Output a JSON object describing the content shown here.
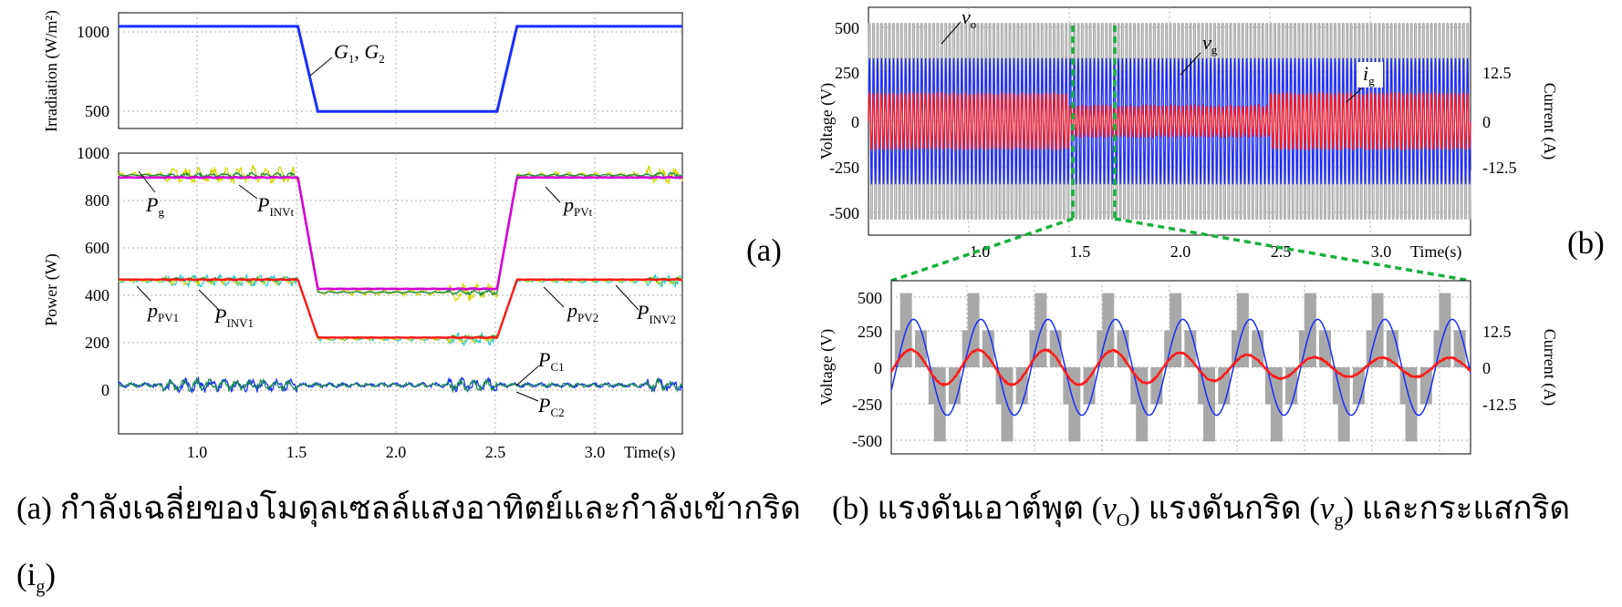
{
  "panel_labels": {
    "a": "(a)",
    "b": "(b)"
  },
  "captions": {
    "a_text": "(a) กำลังเฉลี่ยของโมดุลเซลล์แสงอาทิตย์และกำลังเข้ากริด",
    "a_cont": "(i",
    "a_cont_sub": "g",
    "a_cont_end": ")",
    "b_text1": "(b) แรงดันเอาต์พุต (",
    "b_v": "v",
    "b_sub1": "O",
    "b_text2": ") แรงดันกริด (",
    "b_v2": "v",
    "b_sub2": "g",
    "b_text3": ") และกระแสกริด"
  },
  "colors": {
    "blue": "#1a2cff",
    "red": "#ff1a1a",
    "magenta": "#d400d4",
    "green": "#1a8a4a",
    "cyan": "#20c8d8",
    "yellow": "#d6d600",
    "gray": "#a8a8a8",
    "dashed_green": "#18b040"
  },
  "chart_data": [
    {
      "type": "line",
      "ylabel": "Irradiation (W/m²)",
      "ylim": [
        400,
        1080
      ],
      "xlim": [
        0.6,
        3.43
      ],
      "yticks": [
        "1000",
        "500"
      ],
      "ytick_values": [
        1000,
        500
      ],
      "grid": true,
      "series": [
        {
          "name": "G1, G2",
          "x": [
            0.6,
            1.5,
            1.6,
            2.5,
            2.6,
            3.43
          ],
          "y": [
            1000,
            1000,
            500,
            500,
            1000,
            1000
          ]
        }
      ],
      "annotations": [
        {
          "label": "G",
          "sub": "1",
          "sep": ", ",
          "label2": "G",
          "sub2": "2"
        }
      ]
    },
    {
      "type": "line",
      "ylabel": "Power (W)",
      "xlabel": "Time(s)",
      "ylim": [
        -210,
        1000
      ],
      "xlim": [
        0.6,
        3.43
      ],
      "yticks": [
        "1000",
        "800",
        "600",
        "400",
        "200",
        "0"
      ],
      "ytick_values": [
        1000,
        800,
        600,
        400,
        200,
        0
      ],
      "xticks": [
        "1.0",
        "1.5",
        "2.0",
        "2.5",
        "3.0"
      ],
      "xtick_values": [
        1.0,
        1.5,
        2.0,
        2.5,
        3.0
      ],
      "grid": true,
      "series": [
        {
          "name": "Pg",
          "x": [
            0.6,
            1.5,
            1.6,
            2.5,
            2.6,
            3.43
          ],
          "y": [
            895,
            895,
            415,
            415,
            895,
            895
          ]
        },
        {
          "name": "PINVt",
          "x": [
            0.6,
            1.5,
            1.6,
            2.5,
            2.6,
            3.43
          ],
          "y": [
            905,
            905,
            400,
            400,
            905,
            905
          ]
        },
        {
          "name": "PPVt",
          "x": [
            0.6,
            1.5,
            1.6,
            2.5,
            2.6,
            3.43
          ],
          "y": [
            905,
            905,
            400,
            400,
            905,
            905
          ]
        },
        {
          "name": "PPV1",
          "x": [
            0.6,
            1.5,
            1.6,
            2.5,
            2.6,
            3.43
          ],
          "y": [
            455,
            455,
            205,
            205,
            455,
            455
          ]
        },
        {
          "name": "PINV1",
          "x": [
            0.6,
            1.5,
            1.6,
            2.5,
            2.6,
            3.43
          ],
          "y": [
            450,
            450,
            200,
            200,
            450,
            450
          ]
        },
        {
          "name": "PPV2",
          "x": [
            0.6,
            1.5,
            1.6,
            2.5,
            2.6,
            3.43
          ],
          "y": [
            455,
            455,
            205,
            205,
            455,
            455
          ]
        },
        {
          "name": "PINV2",
          "x": [
            0.6,
            1.5,
            1.6,
            2.5,
            2.6,
            3.43
          ],
          "y": [
            450,
            450,
            200,
            200,
            450,
            450
          ]
        },
        {
          "name": "PC1",
          "x": [
            0.6,
            3.43
          ],
          "y": [
            0,
            0
          ]
        },
        {
          "name": "PC2",
          "x": [
            0.6,
            3.43
          ],
          "y": [
            0,
            0
          ]
        }
      ],
      "annotations": [
        {
          "label": "P",
          "sub": "g"
        },
        {
          "label": "P",
          "sub": "INVt"
        },
        {
          "label": "p",
          "sub": "PVt"
        },
        {
          "label": "p",
          "sub": "PV1"
        },
        {
          "label": "P",
          "sub": "INV1"
        },
        {
          "label": "p",
          "sub": "PV2"
        },
        {
          "label": "P",
          "sub": "INV2"
        },
        {
          "label": "P",
          "sub": "C1"
        },
        {
          "label": "P",
          "sub": "C2"
        }
      ]
    },
    {
      "type": "line",
      "ylabel": "Voltage (V)",
      "y2label": "Current (A)",
      "xlabel": "Time(s)",
      "ylim": [
        -560,
        560
      ],
      "xlim": [
        0.5,
        3.5
      ],
      "yticks": [
        "500",
        "250",
        "0",
        "-250",
        "-500"
      ],
      "ytick_values": [
        500,
        250,
        0,
        -250,
        -500
      ],
      "y2ticks": [
        "12.5",
        "0",
        "-12.5"
      ],
      "y2tick_values": [
        12.5,
        0,
        -12.5
      ],
      "xticks": [
        "1.0",
        "1.5",
        "2.0",
        "2.5",
        "3.0"
      ],
      "xtick_values": [
        1.0,
        1.5,
        2.0,
        2.5,
        3.0
      ],
      "grid": true,
      "series": [
        {
          "name": "vo",
          "amplitude": 480
        },
        {
          "name": "vg",
          "amplitude": 310
        },
        {
          "name": "ig",
          "amplitude": 5.5
        }
      ],
      "annotations": [
        {
          "label": "v",
          "sub": "o"
        },
        {
          "label": "v",
          "sub": "g"
        },
        {
          "label": "i",
          "sub": "g"
        }
      ]
    },
    {
      "type": "line",
      "ylabel": "Voltage (V)",
      "y2label": "Current (A)",
      "ylim": [
        -560,
        560
      ],
      "xlim": [
        1.5,
        1.68
      ],
      "yticks": [
        "500",
        "250",
        "0",
        "-250",
        "-500"
      ],
      "ytick_values": [
        500,
        250,
        0,
        -250,
        -500
      ],
      "y2ticks": [
        "12.5",
        "0",
        "-12.5"
      ],
      "y2tick_values": [
        12.5,
        0,
        -12.5
      ],
      "grid": true,
      "series": [
        {
          "name": "vo",
          "amplitude": 480,
          "levels": [
            480,
            240,
            0,
            -240,
            -480
          ]
        },
        {
          "name": "vg",
          "amplitude": 310,
          "frequency_hz": 50
        },
        {
          "name": "ig",
          "amplitude": 4.5
        }
      ]
    }
  ]
}
